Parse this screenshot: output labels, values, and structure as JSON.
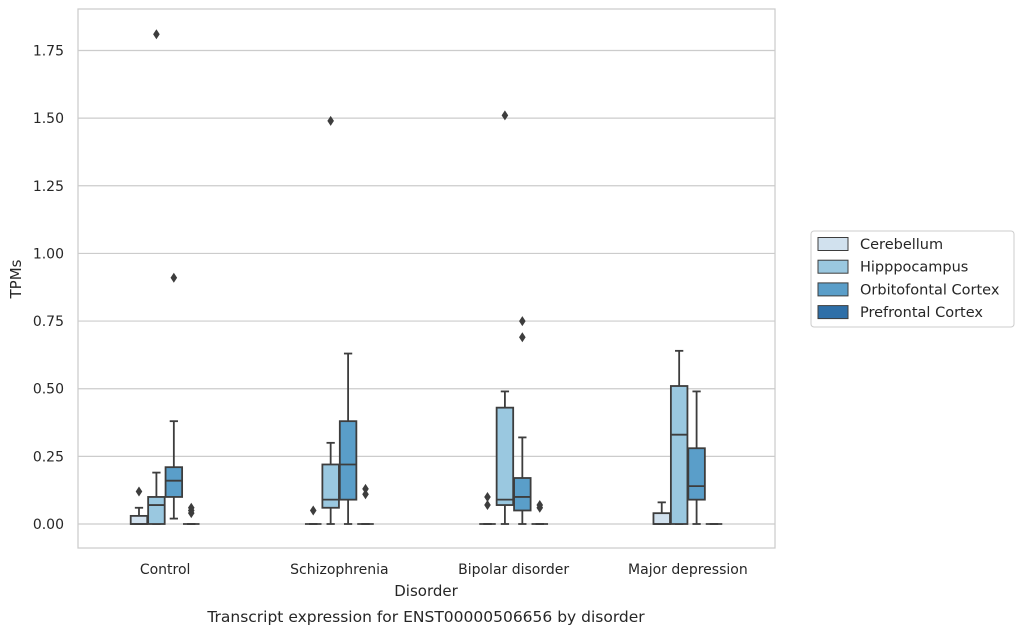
{
  "chart_data": {
    "type": "box",
    "caption": "Transcript expression for ENST00000506656 by disorder",
    "xlabel": "Disorder",
    "ylabel": "TPMs",
    "ylim": [
      -0.09,
      1.9
    ],
    "yticks": [
      0.0,
      0.25,
      0.5,
      0.75,
      1.0,
      1.25,
      1.5,
      1.75
    ],
    "ytick_labels": [
      "0.00",
      "0.25",
      "0.50",
      "0.75",
      "1.00",
      "1.25",
      "1.50",
      "1.75"
    ],
    "grid": "horizontal",
    "legend_position": "right",
    "categories": [
      "Control",
      "Schizophrenia",
      "Bipolar disorder",
      "Major depression"
    ],
    "series": [
      {
        "name": "Cerebellum",
        "color": "#d1e1ee",
        "boxes": [
          {
            "q1": 0.0,
            "median": 0.0,
            "q3": 0.03,
            "whisker_low": 0.0,
            "whisker_high": 0.06,
            "outliers": [
              0.12
            ]
          },
          {
            "q1": 0.0,
            "median": 0.0,
            "q3": 0.0,
            "whisker_low": 0.0,
            "whisker_high": 0.0,
            "outliers": [
              0.05
            ]
          },
          {
            "q1": 0.0,
            "median": 0.0,
            "q3": 0.0,
            "whisker_low": 0.0,
            "whisker_high": 0.0,
            "outliers": [
              0.07,
              0.1
            ]
          },
          {
            "q1": 0.0,
            "median": 0.0,
            "q3": 0.04,
            "whisker_low": 0.0,
            "whisker_high": 0.08,
            "outliers": []
          }
        ]
      },
      {
        "name": "Hipppocampus",
        "color": "#9ac8e0",
        "boxes": [
          {
            "q1": 0.0,
            "median": 0.07,
            "q3": 0.1,
            "whisker_low": 0.0,
            "whisker_high": 0.19,
            "outliers": [
              1.81
            ]
          },
          {
            "q1": 0.06,
            "median": 0.09,
            "q3": 0.22,
            "whisker_low": 0.0,
            "whisker_high": 0.3,
            "outliers": [
              1.49
            ]
          },
          {
            "q1": 0.07,
            "median": 0.09,
            "q3": 0.43,
            "whisker_low": 0.0,
            "whisker_high": 0.49,
            "outliers": [
              1.51
            ]
          },
          {
            "q1": 0.0,
            "median": 0.33,
            "q3": 0.51,
            "whisker_low": 0.0,
            "whisker_high": 0.64,
            "outliers": []
          }
        ]
      },
      {
        "name": "Orbitofontal Cortex",
        "color": "#5a9ec9",
        "boxes": [
          {
            "q1": 0.1,
            "median": 0.16,
            "q3": 0.21,
            "whisker_low": 0.02,
            "whisker_high": 0.38,
            "outliers": [
              0.91
            ]
          },
          {
            "q1": 0.09,
            "median": 0.22,
            "q3": 0.38,
            "whisker_low": 0.0,
            "whisker_high": 0.63,
            "outliers": []
          },
          {
            "q1": 0.05,
            "median": 0.1,
            "q3": 0.17,
            "whisker_low": 0.0,
            "whisker_high": 0.32,
            "outliers": [
              0.69,
              0.75
            ]
          },
          {
            "q1": 0.09,
            "median": 0.14,
            "q3": 0.28,
            "whisker_low": 0.0,
            "whisker_high": 0.49,
            "outliers": []
          }
        ]
      },
      {
        "name": "Prefrontal Cortex",
        "color": "#2e6fa8",
        "boxes": [
          {
            "q1": 0.0,
            "median": 0.0,
            "q3": 0.0,
            "whisker_low": 0.0,
            "whisker_high": 0.0,
            "outliers": [
              0.04,
              0.05,
              0.06
            ]
          },
          {
            "q1": 0.0,
            "median": 0.0,
            "q3": 0.0,
            "whisker_low": 0.0,
            "whisker_high": 0.0,
            "outliers": [
              0.11,
              0.13
            ]
          },
          {
            "q1": 0.0,
            "median": 0.0,
            "q3": 0.0,
            "whisker_low": 0.0,
            "whisker_high": 0.0,
            "outliers": [
              0.06,
              0.07
            ]
          },
          {
            "q1": 0.0,
            "median": 0.0,
            "q3": 0.0,
            "whisker_low": 0.0,
            "whisker_high": 0.0,
            "outliers": []
          }
        ]
      }
    ]
  }
}
